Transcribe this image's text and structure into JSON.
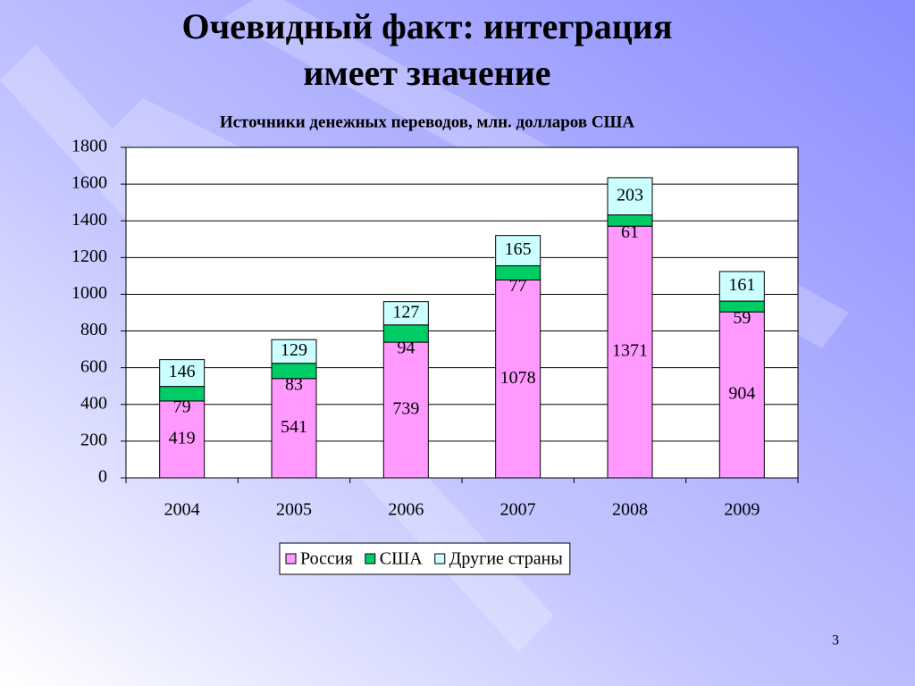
{
  "slide_title": [
    "Очевидный факт: интеграция",
    "имеет значение"
  ],
  "page_number": 3,
  "chart_data": {
    "type": "stacked_bar",
    "title": "Источники денежных переводов, млн. долларов США",
    "categories": [
      "2004",
      "2005",
      "2006",
      "2007",
      "2008",
      "2009"
    ],
    "series": [
      {
        "name": "Россия",
        "color": "#ff99ff",
        "values": [
          419,
          541,
          739,
          1078,
          1371,
          904
        ]
      },
      {
        "name": "США",
        "color": "#00cc66",
        "values": [
          79,
          83,
          94,
          77,
          61,
          59
        ]
      },
      {
        "name": "Другие страны",
        "color": "#ccffff",
        "values": [
          146,
          129,
          127,
          165,
          203,
          161
        ]
      }
    ],
    "ylim": [
      0,
      1800
    ],
    "yticks": [
      0,
      200,
      400,
      600,
      800,
      1000,
      1200,
      1400,
      1600,
      1800
    ],
    "grid": true,
    "legend": "bottom"
  }
}
